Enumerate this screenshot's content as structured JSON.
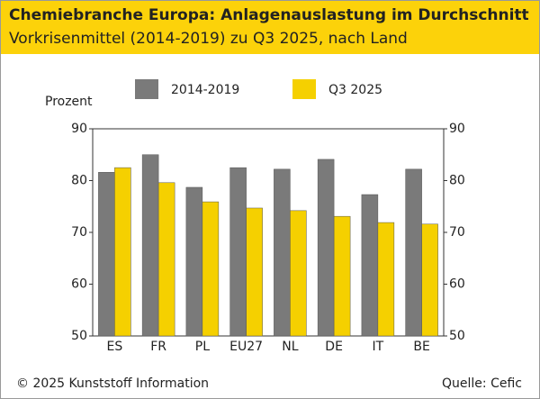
{
  "chart_data": {
    "type": "bar",
    "title": "Chemiebranche Europa: Anlagenauslastung im Durchschnitt",
    "subtitle": "Vorkrisenmittel (2014-2019) zu Q3 2025, nach Land",
    "y_label": "Prozent",
    "categories": [
      "ES",
      "FR",
      "PL",
      "EU27",
      "NL",
      "DE",
      "IT",
      "BE"
    ],
    "series": [
      {
        "name": "2014-2019",
        "color": "#7a7a7a",
        "values": [
          81.6,
          85.0,
          78.7,
          82.5,
          82.2,
          84.1,
          77.3,
          82.2
        ]
      },
      {
        "name": "Q3 2025",
        "color": "#f5d000",
        "values": [
          82.5,
          79.6,
          75.9,
          74.7,
          74.2,
          73.1,
          71.9,
          71.6
        ]
      }
    ],
    "ylim": [
      50,
      90
    ],
    "yticks": [
      50,
      60,
      70,
      80,
      90
    ],
    "source": "Quelle: Cefic",
    "copyright": "© 2025 Kunststoff Information"
  }
}
